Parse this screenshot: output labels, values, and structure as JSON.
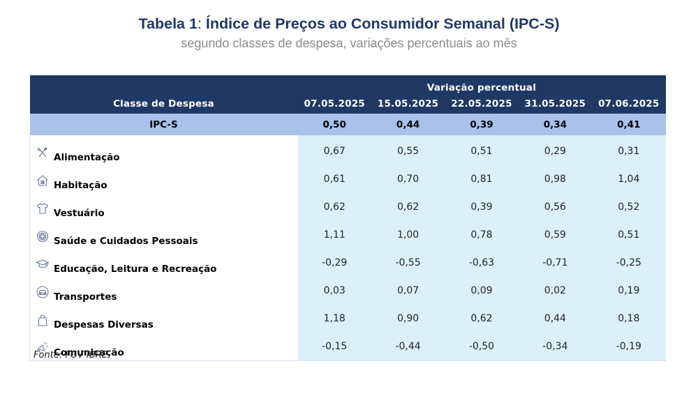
{
  "title": {
    "prefix": "Tabela 1",
    "separator": ":",
    "main": "Índice de Preços ao Consumidor Semanal (IPC-S)"
  },
  "subtitle": "segundo classes de despesa, variações percentuais ao mês",
  "table": {
    "group_header": "Variação percentual",
    "class_header": "Classe de Despesa",
    "dates": [
      "07.05.2025",
      "15.05.2025",
      "22.05.2025",
      "31.05.2025",
      "07.06.2025"
    ],
    "summary": {
      "label": "IPC-S",
      "values": [
        "0,50",
        "0,44",
        "0,39",
        "0,34",
        "0,41"
      ]
    },
    "rows": [
      {
        "icon": "cutlery-icon",
        "label": "Alimentação",
        "values": [
          "0,67",
          "0,55",
          "0,51",
          "0,29",
          "0,31"
        ]
      },
      {
        "icon": "house-icon",
        "label": "Habitação",
        "values": [
          "0,61",
          "0,70",
          "0,81",
          "0,98",
          "1,04"
        ]
      },
      {
        "icon": "shirt-icon",
        "label": "Vestuário",
        "values": [
          "0,62",
          "0,62",
          "0,39",
          "0,56",
          "0,52"
        ]
      },
      {
        "icon": "medical-cross-icon",
        "label": "Saúde e Cuidados Pessoais",
        "values": [
          "1,11",
          "1,00",
          "0,78",
          "0,59",
          "0,51"
        ]
      },
      {
        "icon": "graduation-cap-icon",
        "label": "Educação, Leitura e Recreação",
        "values": [
          "-0,29",
          "-0,55",
          "-0,63",
          "-0,71",
          "-0,25"
        ]
      },
      {
        "icon": "car-icon",
        "label": "Transportes",
        "values": [
          "0,03",
          "0,07",
          "0,09",
          "0,02",
          "0,19"
        ]
      },
      {
        "icon": "shopping-bag-icon",
        "label": "Despesas Diversas",
        "values": [
          "1,18",
          "0,90",
          "0,62",
          "0,44",
          "0,18"
        ]
      },
      {
        "icon": "megaphone-icon",
        "label": "Comunicação",
        "values": [
          "-0,15",
          "-0,44",
          "-0,50",
          "-0,34",
          "-0,19"
        ]
      }
    ]
  },
  "source": "Fonte: FGV IBRE",
  "colors": {
    "title": "#1f3864",
    "header_bg": "#203864",
    "summary_bg": "#a9c2ea",
    "value_bg": "#dcf0fa",
    "subtitle": "#8c8c8c"
  }
}
